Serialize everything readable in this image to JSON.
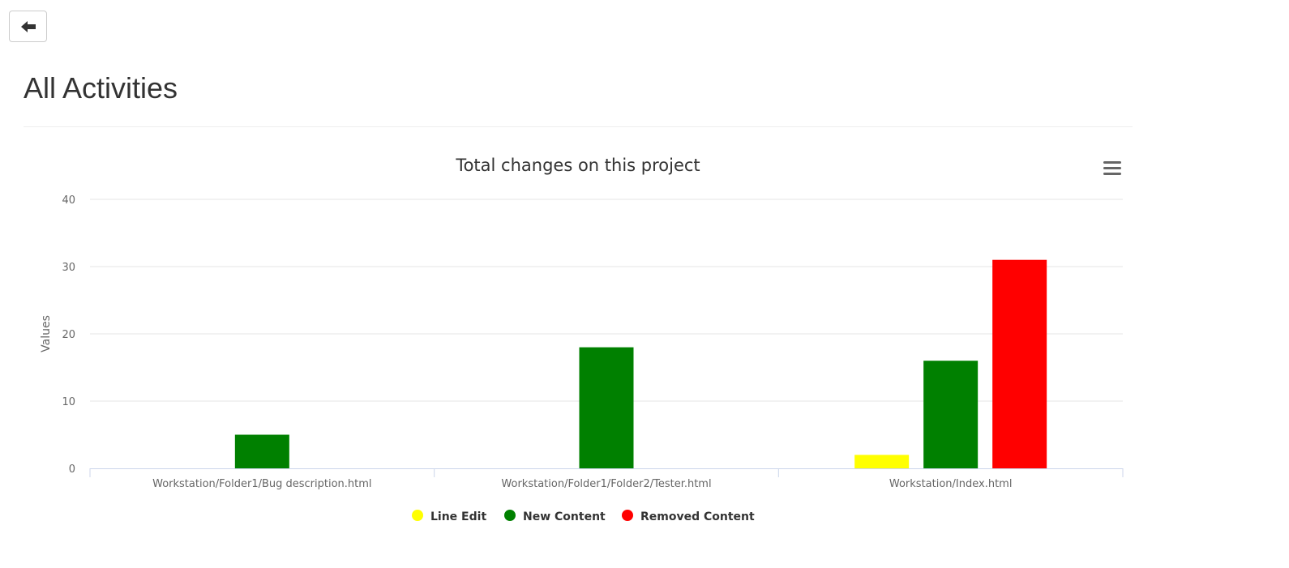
{
  "page": {
    "title": "All Activities",
    "back_icon": "arrow-left-icon",
    "menu_icon": "hamburger-menu-icon"
  },
  "chart_data": {
    "type": "bar",
    "title": "Total changes on this project",
    "xlabel": "",
    "ylabel": "Values",
    "ylim": [
      0,
      40
    ],
    "yticks": [
      0,
      10,
      20,
      30,
      40
    ],
    "grid": true,
    "legend_position": "bottom-center",
    "categories": [
      "Workstation/Folder1/Bug description.html",
      "Workstation/Folder1/Folder2/Tester.html",
      "Workstation/Index.html"
    ],
    "series": [
      {
        "name": "Line Edit",
        "color": "#ffff00",
        "values": [
          0,
          0,
          2
        ]
      },
      {
        "name": "New Content",
        "color": "#008000",
        "values": [
          5,
          18,
          16
        ]
      },
      {
        "name": "Removed Content",
        "color": "#ff0000",
        "values": [
          0,
          0,
          31
        ]
      }
    ]
  }
}
